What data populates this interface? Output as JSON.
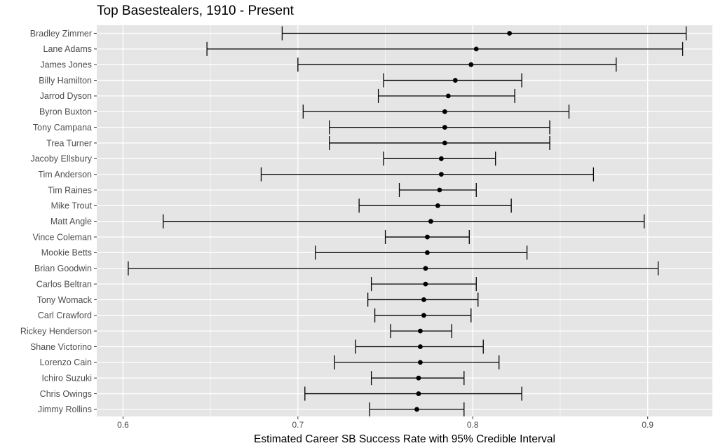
{
  "chart_data": {
    "type": "scatter",
    "title": "Top Basestealers, 1910 - Present",
    "xlabel": "Estimated Career SB Success Rate with 95% Credible Interval",
    "ylabel": "",
    "xlim": [
      0.585,
      0.937
    ],
    "x_ticks": [
      "0.6",
      "0.7",
      "0.8",
      "0.9"
    ],
    "x_tick_values": [
      0.6,
      0.7,
      0.8,
      0.9
    ],
    "grid": true,
    "colors": {
      "panel_background": "#e5e5e5",
      "gridline": "#ffffff",
      "marker": "#000000",
      "axis_text": "#4d4d4d"
    },
    "players": [
      {
        "name": "Bradley Zimmer",
        "estimate": 0.821,
        "lower": 0.691,
        "upper": 0.922
      },
      {
        "name": "Lane Adams",
        "estimate": 0.802,
        "lower": 0.648,
        "upper": 0.92
      },
      {
        "name": "James Jones",
        "estimate": 0.799,
        "lower": 0.7,
        "upper": 0.882
      },
      {
        "name": "Billy Hamilton",
        "estimate": 0.79,
        "lower": 0.749,
        "upper": 0.828
      },
      {
        "name": "Jarrod Dyson",
        "estimate": 0.786,
        "lower": 0.746,
        "upper": 0.824
      },
      {
        "name": "Byron Buxton",
        "estimate": 0.784,
        "lower": 0.703,
        "upper": 0.855
      },
      {
        "name": "Tony Campana",
        "estimate": 0.784,
        "lower": 0.718,
        "upper": 0.844
      },
      {
        "name": "Trea Turner",
        "estimate": 0.784,
        "lower": 0.718,
        "upper": 0.844
      },
      {
        "name": "Jacoby Ellsbury",
        "estimate": 0.782,
        "lower": 0.749,
        "upper": 0.813
      },
      {
        "name": "Tim Anderson",
        "estimate": 0.782,
        "lower": 0.679,
        "upper": 0.869
      },
      {
        "name": "Tim Raines",
        "estimate": 0.781,
        "lower": 0.758,
        "upper": 0.802
      },
      {
        "name": "Mike Trout",
        "estimate": 0.78,
        "lower": 0.735,
        "upper": 0.822
      },
      {
        "name": "Matt Angle",
        "estimate": 0.776,
        "lower": 0.623,
        "upper": 0.898
      },
      {
        "name": "Vince Coleman",
        "estimate": 0.774,
        "lower": 0.75,
        "upper": 0.798
      },
      {
        "name": "Mookie Betts",
        "estimate": 0.774,
        "lower": 0.71,
        "upper": 0.831
      },
      {
        "name": "Brian Goodwin",
        "estimate": 0.773,
        "lower": 0.603,
        "upper": 0.906
      },
      {
        "name": "Carlos Beltran",
        "estimate": 0.773,
        "lower": 0.742,
        "upper": 0.802
      },
      {
        "name": "Tony Womack",
        "estimate": 0.772,
        "lower": 0.74,
        "upper": 0.803
      },
      {
        "name": "Carl Crawford",
        "estimate": 0.772,
        "lower": 0.744,
        "upper": 0.799
      },
      {
        "name": "Rickey Henderson",
        "estimate": 0.77,
        "lower": 0.753,
        "upper": 0.788
      },
      {
        "name": "Shane Victorino",
        "estimate": 0.77,
        "lower": 0.733,
        "upper": 0.806
      },
      {
        "name": "Lorenzo Cain",
        "estimate": 0.77,
        "lower": 0.721,
        "upper": 0.815
      },
      {
        "name": "Ichiro Suzuki",
        "estimate": 0.769,
        "lower": 0.742,
        "upper": 0.795
      },
      {
        "name": "Chris Owings",
        "estimate": 0.769,
        "lower": 0.704,
        "upper": 0.828
      },
      {
        "name": "Jimmy Rollins",
        "estimate": 0.768,
        "lower": 0.741,
        "upper": 0.795
      }
    ]
  }
}
